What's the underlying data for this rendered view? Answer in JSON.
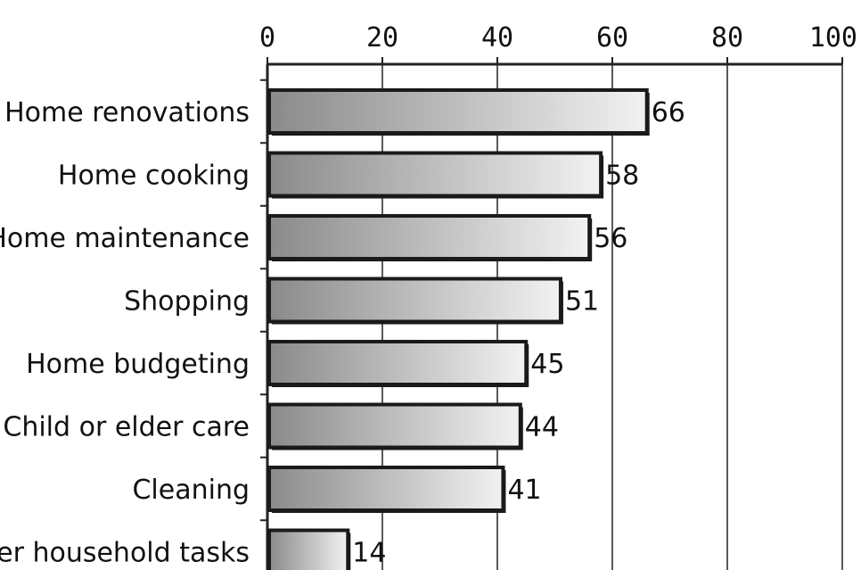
{
  "chart_data": {
    "type": "bar",
    "orientation": "horizontal",
    "categories": [
      "Home renovations",
      "Home cooking",
      "Home maintenance",
      "Shopping",
      "Home budgeting",
      "Child or elder care",
      "Cleaning",
      "Other household tasks"
    ],
    "values": [
      66,
      58,
      56,
      51,
      45,
      44,
      41,
      14
    ],
    "value_labels": [
      "66",
      "58",
      "56",
      "51",
      "45",
      "44",
      "41",
      "14"
    ],
    "x_ticks": [
      "0",
      "20",
      "40",
      "60",
      "80",
      "100"
    ],
    "xlim": [
      0,
      100
    ],
    "x_axis_position": "top",
    "grid": "vertical",
    "title": "",
    "xlabel": "",
    "ylabel": "",
    "colors": {
      "bar_fill_dark": "#8a8a8a",
      "bar_fill_light": "#f2f2f2",
      "bar_outline": "#1a1a1a",
      "grid": "#222222"
    }
  }
}
